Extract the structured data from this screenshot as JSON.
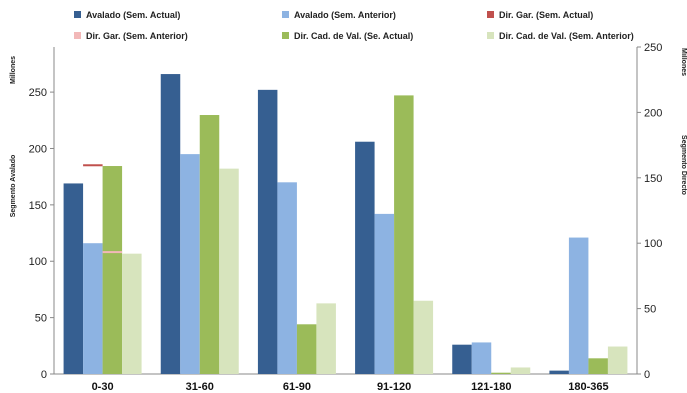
{
  "chart_data": {
    "type": "bar",
    "categories": [
      "0-30",
      "31-60",
      "61-90",
      "91-120",
      "121-180",
      "180-365"
    ],
    "series": [
      {
        "name": "Avalado (Sem. Actual)",
        "color": "#365f91",
        "axis": "left",
        "values": [
          169,
          266,
          252,
          206,
          26,
          3
        ]
      },
      {
        "name": "Avalado (Sem. Anterior)",
        "color": "#8db3e2",
        "axis": "left",
        "values": [
          116,
          195,
          170,
          142,
          28,
          121
        ]
      },
      {
        "name": "Dir. Gar. (Sem. Actual)",
        "color": "#c0504d",
        "axis": "left",
        "values": [
          186,
          0,
          0,
          0,
          0,
          0
        ]
      },
      {
        "name": "Dir. Gar. (Sem. Anterior)",
        "color": "#f2b8b8",
        "axis": "left",
        "values": [
          109,
          0,
          0,
          0,
          0,
          0
        ]
      },
      {
        "name": "Dir. Cad. de Val. (Se. Actual)",
        "color": "#9bbb59",
        "axis": "right",
        "values": [
          159,
          198,
          38,
          213,
          1,
          12
        ]
      },
      {
        "name": "Dir. Cad. de Val. (Sem. Anterior)",
        "color": "#d7e4bd",
        "axis": "right",
        "values": [
          92,
          157,
          54,
          56,
          5,
          21
        ]
      }
    ],
    "y_left": {
      "label": "Segmento Avalado",
      "unit": "Millones",
      "ylim": [
        0,
        290
      ],
      "ticks": [
        0,
        50,
        100,
        150,
        200,
        250
      ]
    },
    "y_right": {
      "label": "Segmento Directo",
      "unit": "Millones",
      "ylim": [
        0,
        250
      ],
      "ticks": [
        0,
        50,
        100,
        150,
        200,
        250
      ]
    },
    "legend_position": "top",
    "grid": false
  }
}
